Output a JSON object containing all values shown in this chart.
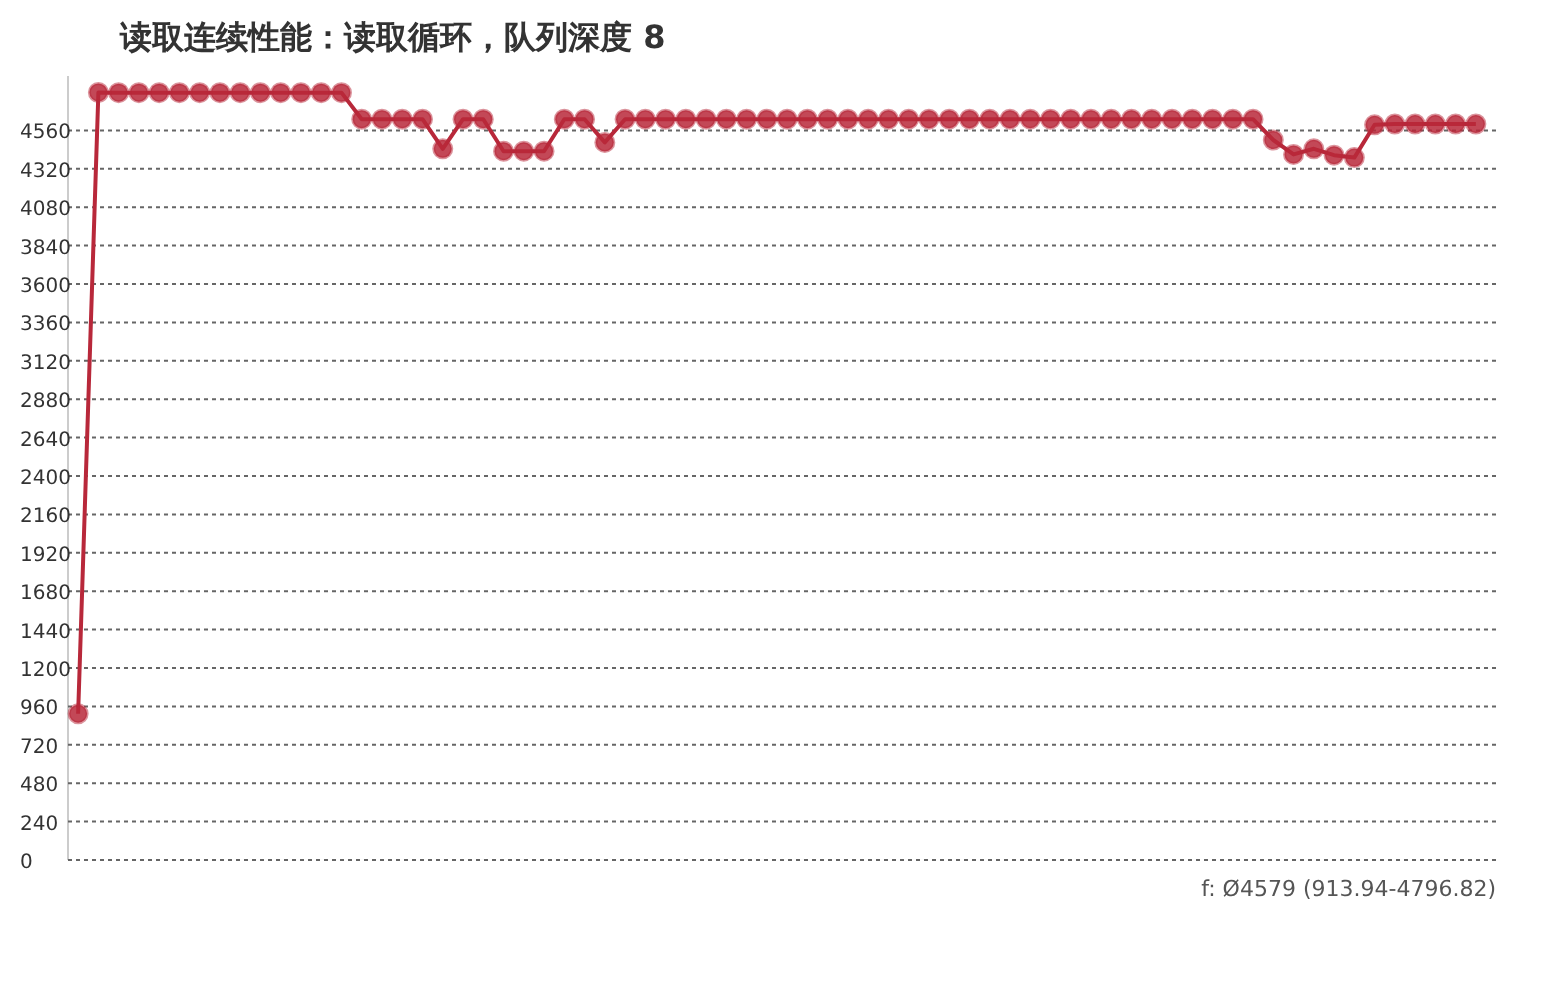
{
  "chart_data": {
    "type": "line",
    "title": "读取连续性能：读取循环，队列深度 8",
    "categories": [
      null,
      null,
      null,
      null,
      null,
      null,
      null,
      null,
      null,
      null,
      null,
      null,
      null,
      null,
      null,
      null,
      null,
      null,
      null,
      null,
      null,
      null,
      null,
      null,
      null,
      null,
      null,
      null,
      null,
      null,
      null,
      null,
      null,
      null,
      null,
      null,
      null,
      null,
      null,
      null,
      null,
      null,
      null,
      null,
      null,
      null,
      null,
      null,
      null,
      null,
      null,
      null,
      null,
      null,
      null,
      null,
      null,
      null,
      null,
      null,
      null,
      null,
      null,
      null,
      null,
      null,
      null,
      null,
      null,
      null
    ],
    "series": [
      {
        "color": "#b8283a",
        "values": [
          914,
          4797,
          4796,
          4796,
          4796,
          4796,
          4796,
          4796,
          4796,
          4796,
          4796,
          4796,
          4796,
          4796,
          4630,
          4630,
          4630,
          4630,
          4445,
          4630,
          4630,
          4430,
          4430,
          4430,
          4630,
          4630,
          4485,
          4630,
          4630,
          4630,
          4630,
          4630,
          4630,
          4630,
          4630,
          4630,
          4630,
          4630,
          4630,
          4630,
          4630,
          4630,
          4630,
          4630,
          4630,
          4630,
          4630,
          4630,
          4630,
          4630,
          4630,
          4630,
          4630,
          4630,
          4630,
          4630,
          4630,
          4630,
          4630,
          4500,
          4410,
          4445,
          4405,
          4390,
          4595,
          4600,
          4600,
          4600,
          4600,
          4600
        ]
      }
    ],
    "ylim": [
      0,
      4900
    ],
    "yticks": [
      0,
      240,
      480,
      720,
      960,
      1200,
      1440,
      1680,
      1920,
      2160,
      2400,
      2640,
      2880,
      3120,
      3360,
      3600,
      3840,
      4080,
      4320,
      4560
    ],
    "grid": "y",
    "marker": "circle",
    "line_style": "solid",
    "tick_labels": "y",
    "annotations": [
      "f: Ø4579 (913.94-4796.82)"
    ]
  }
}
